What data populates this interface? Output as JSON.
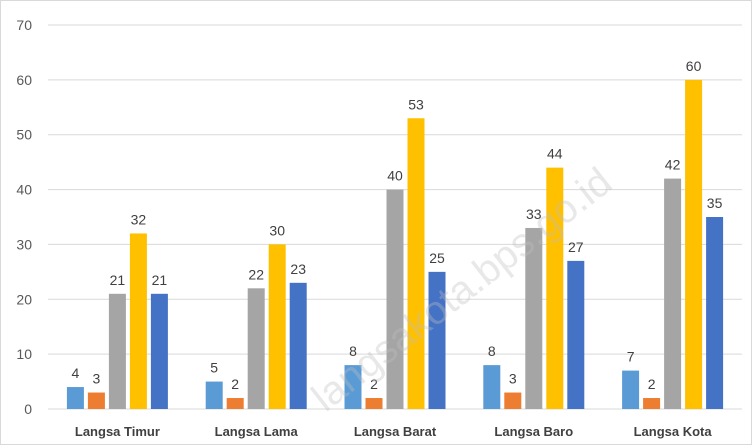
{
  "chart_data": {
    "type": "bar",
    "categories": [
      "Langsa Timur",
      "Langsa Lama",
      "Langsa Barat",
      "Langsa Baro",
      "Langsa Kota"
    ],
    "series": [
      {
        "values": [
          4,
          5,
          8,
          8,
          7
        ],
        "color": "#5b9bd5"
      },
      {
        "values": [
          3,
          2,
          2,
          3,
          2
        ],
        "color": "#ed7d31"
      },
      {
        "values": [
          21,
          22,
          40,
          33,
          42
        ],
        "color": "#a5a5a5"
      },
      {
        "values": [
          32,
          30,
          53,
          44,
          60
        ],
        "color": "#ffc000"
      },
      {
        "values": [
          21,
          23,
          25,
          27,
          35
        ],
        "color": "#4472c4"
      }
    ],
    "yticks": [
      "0",
      "10",
      "20",
      "30",
      "40",
      "50",
      "60",
      "70"
    ],
    "ylim": [
      0,
      70
    ],
    "grid": true,
    "watermark": "langsakota.bps.go.id"
  }
}
